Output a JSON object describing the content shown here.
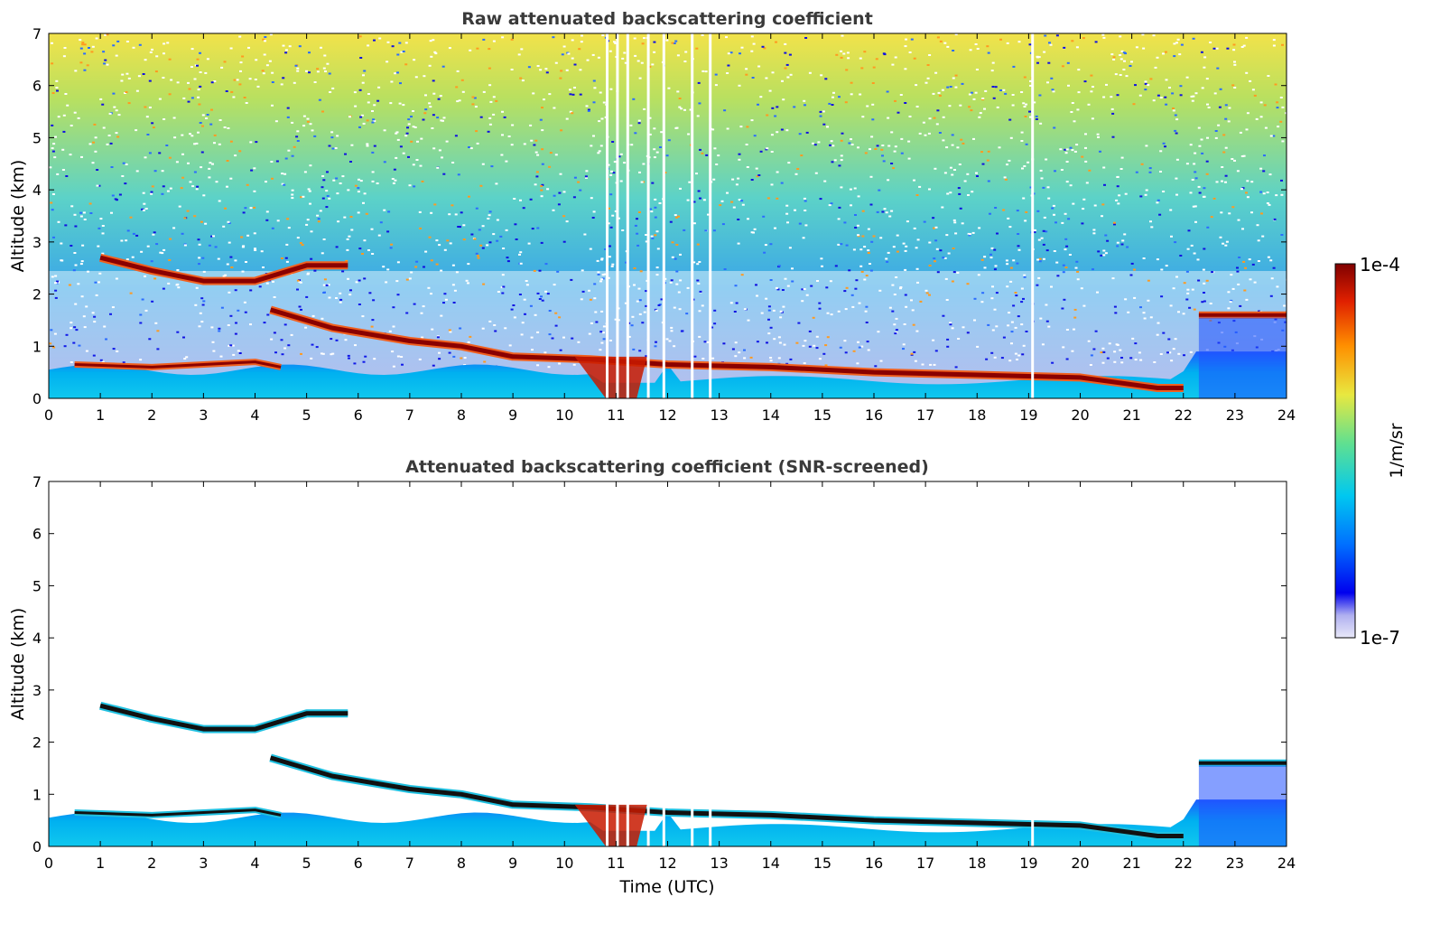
{
  "chart_data": [
    {
      "type": "heatmap",
      "title": "Raw attenuated backscattering coefficient",
      "xlabel": "",
      "ylabel": "Altitude (km)",
      "xlim": [
        0,
        24
      ],
      "ylim": [
        0,
        7
      ],
      "x_ticks": [
        "0",
        "1",
        "2",
        "3",
        "4",
        "5",
        "6",
        "7",
        "8",
        "9",
        "10",
        "11",
        "12",
        "13",
        "14",
        "15",
        "16",
        "17",
        "18",
        "19",
        "20",
        "21",
        "22",
        "23",
        "24"
      ],
      "y_ticks": [
        "0",
        "1",
        "2",
        "3",
        "4",
        "5",
        "6",
        "7"
      ],
      "features": [
        {
          "name": "boundary-layer aerosol",
          "x": [
            0,
            24
          ],
          "altitude": [
            0,
            0.7
          ]
        },
        {
          "name": "elevated cloud layer",
          "points": [
            [
              1.0,
              2.7
            ],
            [
              2.0,
              2.45
            ],
            [
              3.0,
              2.25
            ],
            [
              4.0,
              2.25
            ],
            [
              5.0,
              2.55
            ],
            [
              5.8,
              2.55
            ]
          ]
        },
        {
          "name": "descending cloud layer",
          "points": [
            [
              4.3,
              1.7
            ],
            [
              5.5,
              1.35
            ],
            [
              7.0,
              1.1
            ],
            [
              8.0,
              1.0
            ],
            [
              9.0,
              0.8
            ],
            [
              10.5,
              0.75
            ],
            [
              12.0,
              0.65
            ],
            [
              14.0,
              0.6
            ],
            [
              16.0,
              0.5
            ],
            [
              18.0,
              0.45
            ],
            [
              20.0,
              0.4
            ],
            [
              21.5,
              0.2
            ],
            [
              22.0,
              0.2
            ]
          ]
        },
        {
          "name": "upper cloud",
          "x": [
            22.3,
            24
          ],
          "altitude": 1.6
        },
        {
          "name": "noisy background",
          "x": [
            0,
            24
          ],
          "altitude": [
            1.5,
            7
          ]
        }
      ],
      "data_gaps": [
        10.8,
        11.0,
        11.2,
        11.6,
        11.9,
        12.45,
        12.8,
        19.05
      ]
    },
    {
      "type": "heatmap",
      "title": "Attenuated backscattering coefficient (SNR-screened)",
      "xlabel": "Time (UTC)",
      "ylabel": "Altitude (km)",
      "xlim": [
        0,
        24
      ],
      "ylim": [
        0,
        7
      ],
      "x_ticks": [
        "0",
        "1",
        "2",
        "3",
        "4",
        "5",
        "6",
        "7",
        "8",
        "9",
        "10",
        "11",
        "12",
        "13",
        "14",
        "15",
        "16",
        "17",
        "18",
        "19",
        "20",
        "21",
        "22",
        "23",
        "24"
      ],
      "y_ticks": [
        "0",
        "1",
        "2",
        "3",
        "4",
        "5",
        "6",
        "7"
      ]
    }
  ],
  "colorbar": {
    "label": "1/m/sr",
    "max_label": "1e-4",
    "min_label": "1e-7",
    "scale": "log",
    "colors": [
      "#e8e8f8",
      "#c0c0f0",
      "#0000ee",
      "#0070ff",
      "#00c8f0",
      "#60e090",
      "#e8e840",
      "#ff9000",
      "#e02000",
      "#800000"
    ]
  }
}
